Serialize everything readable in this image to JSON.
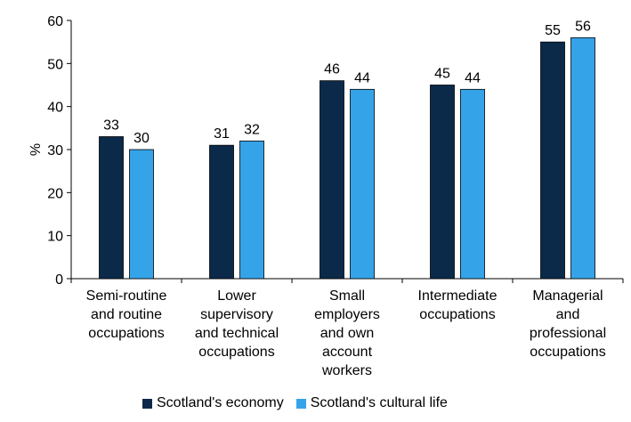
{
  "chart_data": {
    "type": "bar",
    "title": "",
    "xlabel": "",
    "ylabel": "%",
    "ylim": [
      0,
      60
    ],
    "yticks": [
      0,
      10,
      20,
      30,
      40,
      50,
      60
    ],
    "grid": false,
    "legend_position": "bottom",
    "categories": [
      [
        "Semi-routine",
        "and routine",
        "occupations"
      ],
      [
        "Lower",
        "supervisory",
        "and technical",
        "occupations"
      ],
      [
        "Small",
        "employers",
        "and own",
        "account",
        "workers"
      ],
      [
        "Intermediate",
        "occupations"
      ],
      [
        "Managerial",
        "and",
        "professional",
        "occupations"
      ]
    ],
    "series": [
      {
        "name": "Scotland's economy",
        "color": "#0b2a4a",
        "values": [
          33,
          31,
          46,
          45,
          55
        ]
      },
      {
        "name": "Scotland's cultural life",
        "color": "#35a3e8",
        "values": [
          30,
          32,
          44,
          44,
          56
        ]
      }
    ],
    "data_labels": [
      [
        "33",
        "31",
        "46",
        "45",
        "55"
      ],
      [
        "30",
        "32",
        "44",
        "44",
        "56"
      ]
    ]
  }
}
